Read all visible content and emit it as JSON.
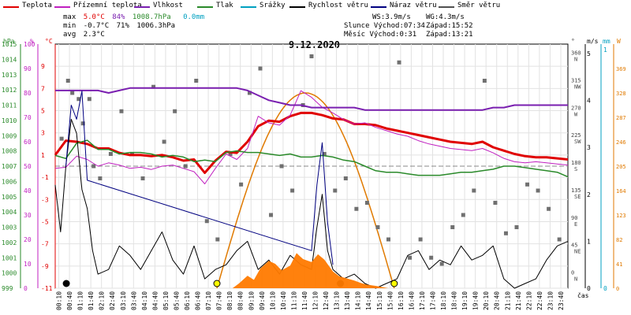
{
  "legend": [
    {
      "label": "Teplota",
      "color": "#e00000"
    },
    {
      "label": "Přízemní teplota",
      "color": "#c020c0"
    },
    {
      "label": "Vlhkost",
      "color": "#7a1fb0"
    },
    {
      "label": "Tlak",
      "color": "#2a8a2a"
    },
    {
      "label": "Srážky",
      "color": "#00a0c0"
    },
    {
      "label": "Rychlost větru",
      "color": "#000000"
    },
    {
      "label": "Náraz větru",
      "color": "#000080"
    },
    {
      "label": "Směr větru",
      "color": "#505050"
    }
  ],
  "stats": {
    "max_label": "max",
    "max_temp": "5.0°C",
    "max_hum": "84%",
    "max_press": "1008.7hPa",
    "max_rain": "0.0mm",
    "min_label": "min",
    "min_temp": "-0.7°C",
    "min_hum": "71%",
    "min_press": "1006.3hPa",
    "avg_label": "avg",
    "avg_temp": "2.3°C",
    "ws": "WS:3.9m/s",
    "wg": "WG:4.3m/s",
    "sun_rise": "Slunce Východ:07:34",
    "sun_set": "Západ:15:52",
    "moon_rise": "Měsíc Východ:0:31",
    "moon_set": "Západ:13:21"
  },
  "chart_data": {
    "type": "line",
    "title": "9.12.2020",
    "xlabel": "čas",
    "x_ticks": [
      "00:10",
      "00:40",
      "01:10",
      "01:40",
      "02:10",
      "02:40",
      "03:10",
      "03:40",
      "04:10",
      "04:40",
      "05:10",
      "05:40",
      "06:10",
      "06:40",
      "07:10",
      "07:40",
      "08:10",
      "08:40",
      "09:10",
      "09:40",
      "10:10",
      "10:40",
      "11:10",
      "11:40",
      "12:10",
      "12:40",
      "13:10",
      "13:40",
      "14:10",
      "14:40",
      "15:10",
      "15:40",
      "16:10",
      "16:40",
      "17:10",
      "17:40",
      "18:10",
      "18:40",
      "19:10",
      "19:40",
      "20:10",
      "20:40",
      "21:10",
      "21:40",
      "22:10",
      "22:40",
      "23:10",
      "23:40"
    ],
    "axes": {
      "pressure": {
        "label": "hPa",
        "ylim": [
          999,
          1015
        ],
        "ticks": [
          999,
          1000,
          1001,
          1002,
          1003,
          1004,
          1005,
          1006,
          1007,
          1008,
          1009,
          1010,
          1011,
          1012,
          1013,
          1014,
          1015
        ]
      },
      "humidity": {
        "label": "%",
        "ylim": [
          0,
          100
        ],
        "ticks": [
          0,
          10,
          20,
          30,
          40,
          50,
          60,
          70,
          80,
          90,
          100
        ]
      },
      "temperature": {
        "label": "°C",
        "ylim": [
          -11,
          11
        ],
        "ticks": [
          -11,
          -9,
          -7,
          -5,
          -3,
          -1,
          1,
          3,
          5,
          7,
          9
        ]
      },
      "wind_direction": {
        "label": "°",
        "ticks": [
          "0 N",
          "45 NE",
          "90 E",
          "135 SE",
          "180 S",
          "225 SW",
          "270 W",
          "315 NW",
          "360 N"
        ]
      },
      "wind_speed": {
        "label": "m/s",
        "ticks": [
          0,
          1,
          2,
          3,
          4,
          5
        ]
      },
      "rain": {
        "label": "mm",
        "ticks": [
          0,
          1
        ]
      },
      "solar": {
        "label": "W",
        "ticks": [
          0,
          41,
          82,
          123,
          164,
          205,
          246,
          287,
          328,
          369
        ]
      }
    },
    "series": [
      {
        "name": "Teplota",
        "axis": "temperature",
        "color": "#e00000",
        "width": 3,
        "x": [
          0,
          0.5,
          1,
          1.5,
          2,
          2.5,
          3,
          3.5,
          4,
          4.5,
          5,
          5.5,
          6,
          6.5,
          7,
          7.5,
          8,
          8.5,
          9,
          9.5,
          10,
          10.5,
          11,
          11.5,
          12,
          12.5,
          13,
          13.5,
          14,
          14.5,
          15,
          15.5,
          16,
          16.5,
          17,
          17.5,
          18,
          18.5,
          19,
          19.5,
          20,
          20.5,
          21,
          21.5,
          22,
          22.5,
          23,
          23.5,
          24
        ],
        "y": [
          1,
          2.3,
          2.2,
          2,
          1.6,
          1.6,
          1.2,
          1,
          1,
          0.9,
          1,
          0.8,
          0.5,
          0.6,
          -0.6,
          0.5,
          1.3,
          1.2,
          2.2,
          3.6,
          4.1,
          4.0,
          4.5,
          4.8,
          4.8,
          4.6,
          4.3,
          4.2,
          3.8,
          3.8,
          3.7,
          3.4,
          3.2,
          3.0,
          2.8,
          2.6,
          2.4,
          2.2,
          2.1,
          2.0,
          2.2,
          1.7,
          1.4,
          1.1,
          0.9,
          0.8,
          0.8,
          0.7,
          0.6
        ]
      },
      {
        "name": "Přízemní teplota",
        "axis": "temperature",
        "color": "#c020c0",
        "width": 1,
        "x": [
          0,
          0.5,
          1,
          1.5,
          2,
          2.5,
          3,
          3.5,
          4,
          4.5,
          5,
          5.5,
          6,
          6.5,
          7,
          7.5,
          8,
          8.5,
          9,
          9.5,
          10,
          10.5,
          11,
          11.5,
          12,
          12.5,
          13,
          13.5,
          14,
          14.5,
          15,
          15.5,
          16,
          16.5,
          17,
          17.5,
          18,
          18.5,
          19,
          19.5,
          20,
          20.5,
          21,
          21.5,
          22,
          22.5,
          23,
          23.5,
          24
        ],
        "y": [
          -0.2,
          -0.1,
          0.9,
          0.6,
          0,
          0.3,
          0.1,
          -0.2,
          -0.1,
          -0.3,
          0,
          0.1,
          -0.2,
          -0.5,
          -1.6,
          -0.2,
          1.1,
          0.6,
          1.6,
          4.5,
          3.9,
          3.7,
          4.6,
          6.8,
          6.2,
          5.3,
          4.8,
          4.2,
          3.8,
          3.9,
          3.5,
          3.2,
          2.9,
          2.7,
          2.3,
          2.0,
          1.8,
          1.6,
          1.5,
          1.4,
          1.6,
          1.2,
          0.7,
          0.4,
          0.3,
          0.4,
          0.3,
          0.2,
          0.1
        ]
      },
      {
        "name": "Vlhkost",
        "axis": "humidity",
        "color": "#7a1fb0",
        "width": 2,
        "x": [
          0,
          0.5,
          1,
          1.5,
          2,
          2.5,
          3,
          3.5,
          4,
          4.5,
          5,
          5.5,
          6,
          6.5,
          7,
          7.5,
          8,
          8.5,
          9,
          9.5,
          10,
          10.5,
          11,
          11.5,
          12,
          12.5,
          13,
          13.5,
          14,
          14.5,
          15,
          15.5,
          16,
          16.5,
          17,
          17.5,
          18,
          18.5,
          19,
          19.5,
          20,
          20.5,
          21,
          21.5,
          22,
          22.5,
          23,
          23.5,
          24
        ],
        "y": [
          81,
          81,
          81,
          81,
          81,
          80,
          81,
          82,
          82,
          82,
          82,
          82,
          82,
          82,
          82,
          82,
          82,
          82,
          81,
          79,
          77,
          76,
          75,
          75,
          74,
          74,
          74,
          74,
          74,
          73,
          73,
          73,
          73,
          73,
          73,
          73,
          73,
          73,
          73,
          73,
          73,
          74,
          74,
          75,
          75,
          75,
          75,
          75,
          75
        ]
      },
      {
        "name": "Tlak",
        "axis": "pressure",
        "color": "#2a8a2a",
        "width": 1.5,
        "x": [
          0,
          0.5,
          1,
          1.5,
          2,
          2.5,
          3,
          3.5,
          4,
          4.5,
          5,
          5.5,
          6,
          6.5,
          7,
          7.5,
          8,
          8.5,
          9,
          9.5,
          10,
          10.5,
          11,
          11.5,
          12,
          12.5,
          13,
          13.5,
          14,
          14.5,
          15,
          15.5,
          16,
          16.5,
          17,
          17.5,
          18,
          18.5,
          19,
          19.5,
          20,
          20.5,
          21,
          21.5,
          22,
          22.5,
          23,
          23.5,
          24
        ],
        "y": [
          1007.7,
          1007.5,
          1008.5,
          1008.7,
          1008.1,
          1008.1,
          1007.8,
          1007.9,
          1007.9,
          1007.8,
          1007.6,
          1007.7,
          1007.6,
          1007.3,
          1007.4,
          1007.3,
          1007.9,
          1008.0,
          1007.9,
          1007.9,
          1007.8,
          1007.7,
          1007.8,
          1007.6,
          1007.6,
          1007.7,
          1007.6,
          1007.4,
          1007.3,
          1007.0,
          1006.7,
          1006.6,
          1006.6,
          1006.5,
          1006.4,
          1006.4,
          1006.4,
          1006.5,
          1006.6,
          1006.6,
          1006.7,
          1006.8,
          1007.0,
          1007.0,
          1006.9,
          1006.8,
          1006.7,
          1006.6,
          1006.3
        ]
      },
      {
        "name": "Rychlost větru",
        "axis": "wind_speed",
        "color": "#000000",
        "width": 1,
        "x": [
          0,
          0.25,
          0.5,
          0.75,
          1,
          1.25,
          1.5,
          1.75,
          2,
          2.5,
          3,
          3.5,
          4,
          4.5,
          5,
          5.5,
          6,
          6.5,
          7,
          7.5,
          8,
          8.5,
          9,
          9.5,
          10,
          10.5,
          11,
          11.5,
          12,
          12.25,
          12.5,
          12.75,
          13,
          13.5,
          14,
          14.5,
          15,
          15.5,
          16,
          16.5,
          17,
          17.5,
          18,
          18.5,
          19,
          19.5,
          20,
          20.5,
          21,
          21.5,
          22,
          22.5,
          23,
          23.5,
          24
        ],
        "y": [
          2.2,
          1.2,
          2.6,
          3.6,
          3.3,
          2.1,
          1.7,
          0.8,
          0.3,
          0.4,
          0.9,
          0.7,
          0.4,
          0.8,
          1.2,
          0.6,
          0.3,
          0.9,
          0.2,
          0.4,
          0.5,
          0.8,
          1.0,
          0.4,
          0.6,
          0.3,
          0.7,
          0.5,
          0.4,
          1.3,
          2.0,
          0.8,
          0.4,
          0.2,
          0.3,
          0.1,
          0.0,
          0.1,
          0.2,
          0.7,
          0.8,
          0.4,
          0.6,
          0.5,
          0.9,
          0.6,
          0.7,
          0.9,
          0.2,
          0.0,
          0.1,
          0.2,
          0.6,
          0.9,
          1.0
        ]
      },
      {
        "name": "Náraz větru",
        "axis": "wind_speed",
        "color": "#000080",
        "width": 1,
        "x": [
          0.5,
          0.75,
          1,
          1.25,
          1.5,
          12.0,
          12.25,
          12.5,
          12.75,
          13.0
        ],
        "y": [
          2.6,
          3.9,
          3.6,
          4.2,
          2.3,
          0.8,
          2.2,
          3.1,
          1.4,
          0.5
        ]
      },
      {
        "name": "Solar",
        "axis": "solar",
        "color": "#ff7a00",
        "fill": true,
        "x": [
          8.3,
          8.6,
          9,
          9.3,
          9.6,
          10,
          10.3,
          10.6,
          11,
          11.3,
          11.6,
          12,
          12.3,
          12.6,
          13,
          13.3,
          13.6,
          14,
          14.3,
          14.6,
          15,
          15.3,
          15.6
        ],
        "y": [
          0,
          8,
          21,
          14,
          33,
          46,
          41,
          30,
          38,
          59,
          49,
          44,
          57,
          48,
          28,
          20,
          17,
          13,
          9,
          6,
          4,
          2,
          0
        ]
      }
    ],
    "solar_curve": {
      "axis": "solar",
      "color": "#e07a00",
      "peak": 328,
      "start": 7.57,
      "end": 15.87
    },
    "wind_direction_points": [
      [
        0.3,
        225
      ],
      [
        0.6,
        320
      ],
      [
        0.8,
        300
      ],
      [
        1.1,
        290
      ],
      [
        1.3,
        250
      ],
      [
        1.6,
        290
      ],
      [
        1.8,
        180
      ],
      [
        2.1,
        160
      ],
      [
        2.6,
        200
      ],
      [
        3.1,
        270
      ],
      [
        3.6,
        200
      ],
      [
        4.1,
        160
      ],
      [
        4.6,
        310
      ],
      [
        5.1,
        220
      ],
      [
        5.6,
        270
      ],
      [
        6.1,
        180
      ],
      [
        6.6,
        320
      ],
      [
        7.1,
        90
      ],
      [
        7.6,
        60
      ],
      [
        8.2,
        200
      ],
      [
        8.7,
        150
      ],
      [
        9.1,
        300
      ],
      [
        9.6,
        340
      ],
      [
        10.1,
        100
      ],
      [
        10.6,
        180
      ],
      [
        11.1,
        140
      ],
      [
        11.6,
        280
      ],
      [
        12.0,
        360
      ],
      [
        12.6,
        200
      ],
      [
        13.1,
        140
      ],
      [
        13.6,
        160
      ],
      [
        14.1,
        110
      ],
      [
        14.6,
        120
      ],
      [
        15.1,
        80
      ],
      [
        15.6,
        60
      ],
      [
        16.1,
        350
      ],
      [
        16.6,
        30
      ],
      [
        17.1,
        60
      ],
      [
        17.6,
        30
      ],
      [
        18.1,
        20
      ],
      [
        18.6,
        80
      ],
      [
        19.1,
        100
      ],
      [
        19.6,
        140
      ],
      [
        20.1,
        320
      ],
      [
        20.6,
        120
      ],
      [
        21.1,
        70
      ],
      [
        21.6,
        80
      ],
      [
        22.1,
        150
      ],
      [
        22.6,
        140
      ],
      [
        23.1,
        110
      ],
      [
        23.6,
        60
      ]
    ]
  }
}
